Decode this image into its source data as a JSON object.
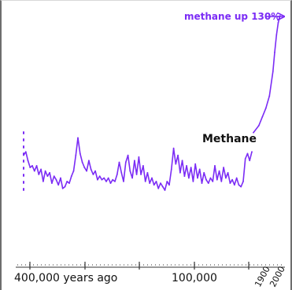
{
  "colors": {
    "series": "#7b2cf5",
    "axis": "#333333",
    "text": "#111111"
  },
  "chart_data": {
    "type": "line",
    "title": "",
    "xlabel": "",
    "ylabel": "",
    "annotations": {
      "series_label": "Methane",
      "callout": "methane up 130%"
    },
    "x_ticks": [
      {
        "label": "400,000 years ago",
        "rotated": false
      },
      {
        "label": "100,000",
        "rotated": false
      },
      {
        "label": "1900",
        "rotated": true
      },
      {
        "label": "2000",
        "rotated": true
      }
    ],
    "series": [
      {
        "name": "Methane",
        "y_units": "relative",
        "ylim": [
          0,
          100
        ],
        "segments": [
          {
            "x_units": "years ago",
            "xlim": [
              420000,
              0
            ],
            "points": [
              [
                420000,
                20
              ],
              [
                416000,
                22
              ],
              [
                412000,
                17
              ],
              [
                408000,
                13
              ],
              [
                404000,
                14
              ],
              [
                400000,
                11
              ],
              [
                396000,
                14
              ],
              [
                392000,
                9
              ],
              [
                388000,
                12
              ],
              [
                384000,
                5
              ],
              [
                380000,
                11
              ],
              [
                376000,
                8
              ],
              [
                372000,
                10
              ],
              [
                368000,
                4
              ],
              [
                364000,
                8
              ],
              [
                360000,
                6
              ],
              [
                356000,
                3
              ],
              [
                352000,
                7
              ],
              [
                348000,
                1
              ],
              [
                344000,
                2
              ],
              [
                340000,
                5
              ],
              [
                336000,
                4
              ],
              [
                332000,
                8
              ],
              [
                328000,
                11
              ],
              [
                324000,
                20
              ],
              [
                320000,
                30
              ],
              [
                316000,
                21
              ],
              [
                312000,
                16
              ],
              [
                308000,
                13
              ],
              [
                304000,
                11
              ],
              [
                300000,
                17
              ],
              [
                296000,
                12
              ],
              [
                292000,
                9
              ],
              [
                288000,
                11
              ],
              [
                284000,
                6
              ],
              [
                280000,
                8
              ],
              [
                276000,
                6
              ],
              [
                272000,
                7
              ],
              [
                268000,
                5
              ],
              [
                264000,
                7
              ],
              [
                260000,
                4
              ],
              [
                256000,
                6
              ],
              [
                252000,
                5
              ],
              [
                248000,
                9
              ],
              [
                244000,
                16
              ],
              [
                240000,
                10
              ],
              [
                236000,
                5
              ],
              [
                232000,
                16
              ],
              [
                228000,
                20
              ],
              [
                224000,
                11
              ],
              [
                220000,
                7
              ],
              [
                216000,
                17
              ],
              [
                212000,
                9
              ],
              [
                208000,
                19
              ],
              [
                204000,
                9
              ],
              [
                200000,
                14
              ],
              [
                196000,
                5
              ],
              [
                192000,
                10
              ],
              [
                188000,
                4
              ],
              [
                184000,
                7
              ],
              [
                180000,
                3
              ],
              [
                176000,
                5
              ],
              [
                172000,
                1
              ],
              [
                168000,
                4
              ],
              [
                164000,
                2
              ],
              [
                160000,
                0
              ],
              [
                156000,
                5
              ],
              [
                152000,
                3
              ],
              [
                148000,
                12
              ],
              [
                144000,
                24
              ],
              [
                140000,
                15
              ],
              [
                136000,
                20
              ],
              [
                132000,
                10
              ],
              [
                128000,
                17
              ],
              [
                124000,
                8
              ],
              [
                120000,
                14
              ],
              [
                116000,
                7
              ],
              [
                112000,
                13
              ],
              [
                108000,
                5
              ],
              [
                104000,
                15
              ],
              [
                100000,
                7
              ],
              [
                96000,
                12
              ],
              [
                92000,
                4
              ],
              [
                88000,
                10
              ],
              [
                84000,
                6
              ],
              [
                80000,
                4
              ],
              [
                76000,
                7
              ],
              [
                72000,
                5
              ],
              [
                68000,
                14
              ],
              [
                64000,
                6
              ],
              [
                60000,
                11
              ],
              [
                56000,
                5
              ],
              [
                52000,
                13
              ],
              [
                48000,
                7
              ],
              [
                44000,
                10
              ],
              [
                40000,
                4
              ],
              [
                36000,
                6
              ],
              [
                32000,
                3
              ],
              [
                28000,
                7
              ],
              [
                24000,
                3
              ],
              [
                20000,
                2
              ],
              [
                16000,
                5
              ],
              [
                12000,
                18
              ],
              [
                8000,
                21
              ],
              [
                4000,
                17
              ],
              [
                0,
                22
              ]
            ]
          },
          {
            "x_units": "year",
            "xlim": [
              1850,
              2010
            ],
            "points": [
              [
                1850,
                33
              ],
              [
                1880,
                37
              ],
              [
                1900,
                42
              ],
              [
                1920,
                47
              ],
              [
                1940,
                54
              ],
              [
                1960,
                68
              ],
              [
                1970,
                79
              ],
              [
                1980,
                89
              ],
              [
                1990,
                96
              ],
              [
                2000,
                100
              ]
            ]
          }
        ]
      }
    ]
  }
}
